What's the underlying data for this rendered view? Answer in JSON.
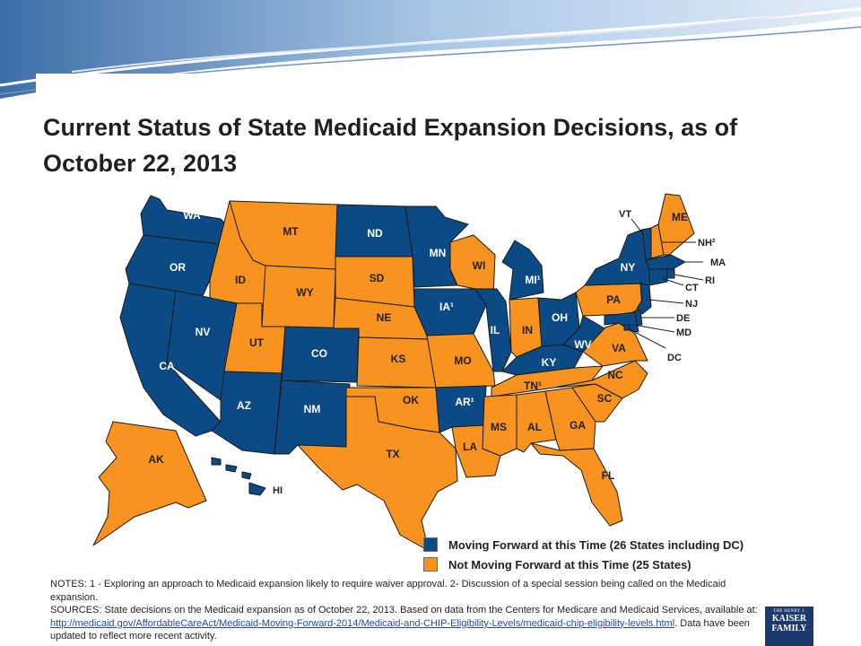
{
  "title": "Current Status of State Medicaid Expansion Decisions, as of October 22, 2013",
  "colors": {
    "moving_forward": "#0b4a85",
    "not_moving_forward": "#f7931e",
    "banner": "#b9d3ec"
  },
  "states": {
    "WA": "WA",
    "OR": "OR",
    "CA": "CA",
    "NV": "NV",
    "ID": "ID",
    "MT": "MT",
    "WY": "WY",
    "UT": "UT",
    "AZ": "AZ",
    "CO": "CO",
    "NM": "NM",
    "ND": "ND",
    "SD": "SD",
    "NE": "NE",
    "KS": "KS",
    "OK": "OK",
    "TX": "TX",
    "MN": "MN",
    "IA": "IA¹",
    "MO": "MO",
    "AR": "AR¹",
    "LA": "LA",
    "WI": "WI",
    "IL": "IL",
    "MI": "MI¹",
    "IN": "IN",
    "OH": "OH",
    "KY": "KY",
    "TN": "TN¹",
    "MS": "MS",
    "AL": "AL",
    "GA": "GA",
    "FL": "FL",
    "SC": "SC",
    "NC": "NC",
    "VA": "VA",
    "WV": "WV",
    "PA": "PA",
    "NY": "NY",
    "VT": "VT",
    "NH": "NH²",
    "ME": "ME",
    "MA": "MA",
    "RI": "RI",
    "CT": "CT",
    "NJ": "NJ",
    "DE": "DE",
    "MD": "MD",
    "DC": "DC",
    "AK": "AK",
    "HI": "HI"
  },
  "legend": {
    "moving": "Moving Forward at this Time (26 States including DC)",
    "not_moving": "Not Moving Forward at this Time (25 States)"
  },
  "notes": {
    "line1": "NOTES: 1 - Exploring an approach to Medicaid expansion likely to require waiver approval. 2- Discussion of a special session being called on the Medicaid expansion.",
    "sources_prefix": "SOURCES: State decisions on the Medicaid expansion as of October 22, 2013. Based on data from the Centers for Medicare and Medicaid Services, available at: ",
    "link": "http://medicaid.gov/AffordableCareAct/Medicaid-Moving-Forward-2014/Medicaid-and-CHIP-Eligibility-Levels/medicaid-chip-eligibility-levels.html",
    "sources_suffix": ". Data have been updated to reflect more recent activity."
  },
  "logo": {
    "line1": "THE HENRY J.",
    "line2": "KAISER",
    "line3": "FAMILY"
  }
}
